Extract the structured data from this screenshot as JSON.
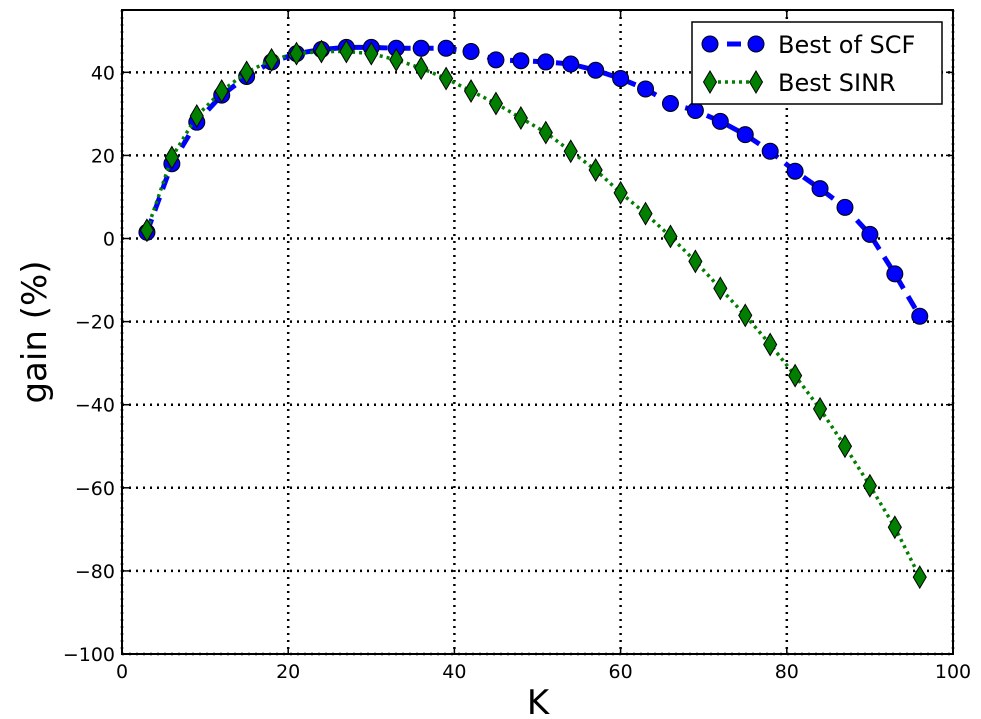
{
  "chart_data": {
    "type": "line",
    "xlabel": "K",
    "ylabel": "gain (%)",
    "xlim": [
      0,
      100
    ],
    "ylim": [
      -100,
      55
    ],
    "xticks": [
      0,
      20,
      40,
      60,
      80,
      100
    ],
    "yticks": [
      -100,
      -80,
      -60,
      -40,
      -20,
      0,
      20,
      40
    ],
    "grid": true,
    "legend_position": "top-right",
    "series": [
      {
        "name": "Best of SCF",
        "color": "#0000ff",
        "line_style": "dashed",
        "marker": "circle",
        "x": [
          3,
          6,
          9,
          12,
          15,
          18,
          21,
          24,
          27,
          30,
          33,
          36,
          39,
          42,
          45,
          48,
          51,
          54,
          57,
          60,
          63,
          66,
          69,
          72,
          75,
          78,
          81,
          84,
          87,
          90,
          93,
          96
        ],
        "y": [
          1.5,
          18,
          28,
          34.5,
          39,
          42.5,
          44.5,
          45.5,
          46,
          46,
          45.8,
          45.8,
          45.8,
          45,
          43,
          42.8,
          42.5,
          42,
          40.5,
          38.5,
          36,
          32.5,
          30.8,
          28.2,
          25,
          21,
          16.2,
          12,
          7.5,
          1,
          -8.5,
          -18.7
        ]
      },
      {
        "name": "Best SINR",
        "color": "#007f00",
        "line_style": "dotted",
        "marker": "diamond",
        "x": [
          3,
          6,
          9,
          12,
          15,
          18,
          21,
          24,
          27,
          30,
          33,
          36,
          39,
          42,
          45,
          48,
          51,
          54,
          57,
          60,
          63,
          66,
          69,
          72,
          75,
          78,
          81,
          84,
          87,
          90,
          93,
          96
        ],
        "y": [
          2,
          19.5,
          29.5,
          35.5,
          40,
          43,
          44.5,
          45,
          45,
          44.5,
          43,
          41,
          38.5,
          35.5,
          32.5,
          29,
          25.5,
          21,
          16.5,
          11,
          6,
          0.5,
          -5.5,
          -12,
          -18.5,
          -25.5,
          -33,
          -41,
          -50,
          -59.5,
          -69.5,
          -81.5
        ]
      }
    ]
  }
}
